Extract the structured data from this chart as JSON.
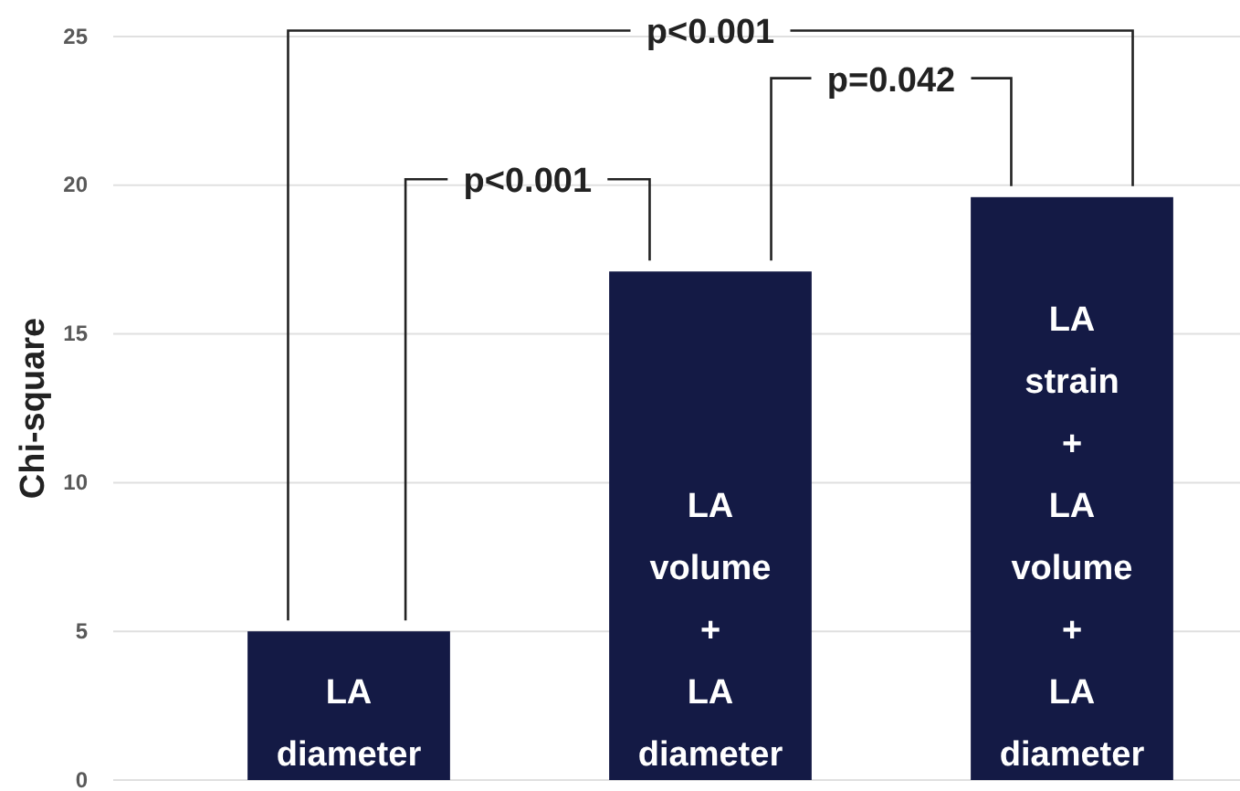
{
  "chart_data": {
    "type": "bar",
    "ylabel": "Chi-square",
    "categories": [
      "LA\ndiameter",
      "LA\nvolume\n+\nLA\ndiameter",
      "LA\nstrain\n+\nLA\nvolume\n+\nLA\ndiameter"
    ],
    "values": [
      5.0,
      17.1,
      19.6
    ],
    "color": "#141a45",
    "ylim": [
      0,
      25
    ],
    "yticks": [
      0,
      5,
      10,
      15,
      20,
      25
    ],
    "grid": "y",
    "annotations": [
      "p<0.001",
      "p=0.042",
      "p<0.001"
    ]
  }
}
